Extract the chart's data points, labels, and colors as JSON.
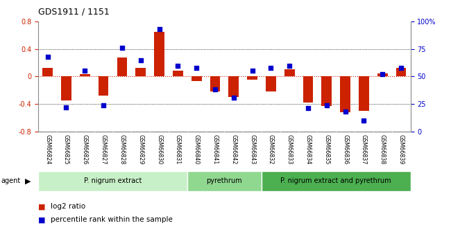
{
  "title": "GDS1911 / 1151",
  "samples": [
    "GSM66824",
    "GSM66825",
    "GSM66826",
    "GSM66827",
    "GSM66828",
    "GSM66829",
    "GSM66830",
    "GSM66831",
    "GSM66840",
    "GSM66841",
    "GSM66842",
    "GSM66843",
    "GSM66832",
    "GSM66833",
    "GSM66834",
    "GSM66835",
    "GSM66836",
    "GSM66837",
    "GSM66838",
    "GSM66839"
  ],
  "log2_ratio": [
    0.13,
    -0.35,
    0.03,
    -0.28,
    0.28,
    0.12,
    0.65,
    0.08,
    -0.07,
    -0.22,
    -0.3,
    -0.05,
    -0.22,
    0.1,
    -0.38,
    -0.43,
    -0.52,
    -0.5,
    0.04,
    0.13
  ],
  "pct_rank": [
    68,
    22,
    55,
    24,
    76,
    65,
    93,
    60,
    58,
    38,
    31,
    55,
    58,
    60,
    21,
    24,
    18,
    10,
    52,
    58
  ],
  "groups": [
    {
      "label": "P. nigrum extract",
      "start": 0,
      "end": 8
    },
    {
      "label": "pyrethrum",
      "start": 8,
      "end": 12
    },
    {
      "label": "P. nigrum extract and pyrethrum",
      "start": 12,
      "end": 20
    }
  ],
  "group_colors": [
    "#c8f0c8",
    "#90d890",
    "#4caf50"
  ],
  "ylim_left": [
    -0.8,
    0.8
  ],
  "ylim_right": [
    0,
    100
  ],
  "bar_color": "#cc2200",
  "dot_color": "#0000cc",
  "bar_width": 0.55,
  "dot_size": 22,
  "hline0_color": "#cc2200",
  "hline_color": "black",
  "bg_color": "#ffffff",
  "tick_bg": "#d0d0d0",
  "left_yticks": [
    -0.8,
    -0.4,
    0,
    0.4,
    0.8
  ],
  "right_yticks": [
    0,
    25,
    50,
    75,
    100
  ],
  "right_yticklabels": [
    "0",
    "25",
    "50",
    "75",
    "100%"
  ]
}
